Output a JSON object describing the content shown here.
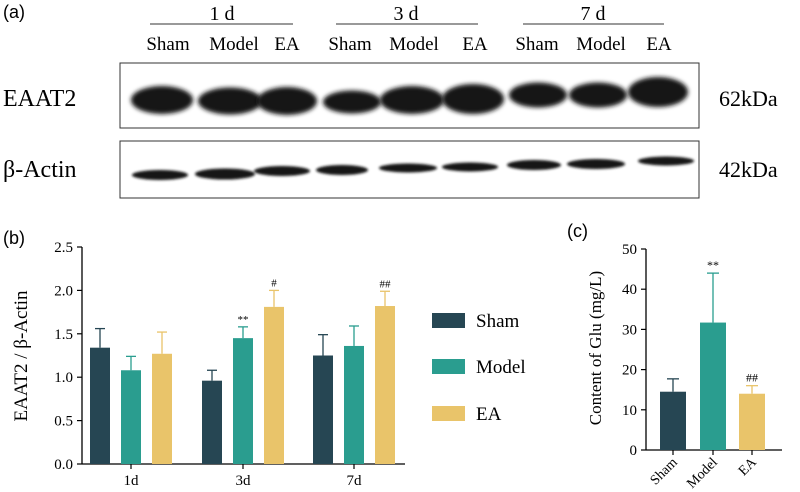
{
  "panels": {
    "a_label": "(a)",
    "b_label": "(b)",
    "c_label": "(c)"
  },
  "blot": {
    "timepoints": [
      "1 d",
      "3 d",
      "7 d"
    ],
    "lanes": [
      "Sham",
      "Model",
      "EA",
      "Sham",
      "Model",
      "EA",
      "Sham",
      "Model",
      "EA"
    ],
    "rows": [
      {
        "protein": "EAAT2",
        "mw": "62kDa"
      },
      {
        "protein": "β-Actin",
        "mw": "42kDa"
      }
    ]
  },
  "colors": {
    "Sham": "#264653",
    "Model": "#2a9d8f",
    "EA": "#e9c46a",
    "band": "#121212"
  },
  "chart_data": [
    {
      "type": "bar",
      "categories": [
        "1d",
        "3d",
        "7d"
      ],
      "series": [
        {
          "name": "Sham",
          "values": [
            1.34,
            0.96,
            1.25
          ],
          "errors": [
            0.22,
            0.12,
            0.24
          ],
          "significance": [
            "",
            "",
            ""
          ]
        },
        {
          "name": "Model",
          "values": [
            1.08,
            1.45,
            1.36
          ],
          "errors": [
            0.16,
            0.13,
            0.23
          ],
          "significance": [
            "",
            "**",
            ""
          ]
        },
        {
          "name": "EA",
          "values": [
            1.27,
            1.81,
            1.82
          ],
          "errors": [
            0.25,
            0.19,
            0.17
          ],
          "significance": [
            "",
            "#",
            "##"
          ]
        }
      ],
      "ylabel": "EAAT2 / β-Actin",
      "ylim": [
        0,
        2.5
      ],
      "yticks": [
        "0.0",
        "0.5",
        "1.0",
        "1.5",
        "2.0",
        "2.5"
      ],
      "legend": "right"
    },
    {
      "type": "bar",
      "categories": [
        "Sham",
        "Model",
        "EA"
      ],
      "values": [
        14.5,
        31.7,
        14.0
      ],
      "errors": [
        3.2,
        12.3,
        2.0
      ],
      "significance": [
        "",
        "**",
        "##"
      ],
      "ylabel": "Content of Glu (mg/L)",
      "ylim": [
        0,
        50
      ],
      "yticks": [
        "0",
        "10",
        "20",
        "30",
        "40",
        "50"
      ]
    }
  ]
}
